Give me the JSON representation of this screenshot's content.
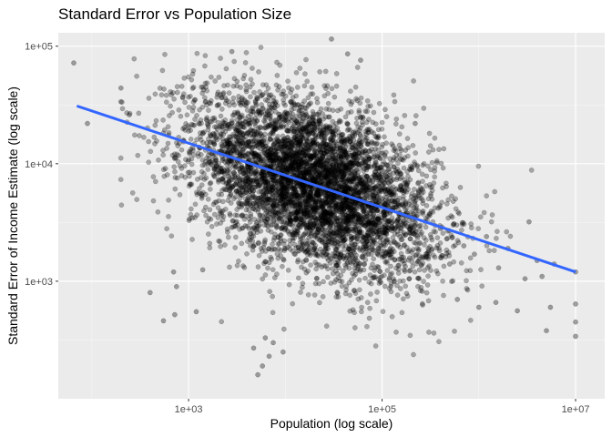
{
  "chart_data": {
    "type": "scatter",
    "title": "Standard Error vs Population Size",
    "xlabel": "Population (log scale)",
    "ylabel": "Standard Error of Income Estimate (log scale)",
    "x_scale": "log10",
    "y_scale": "log10",
    "xlim": [
      45,
      20000000
    ],
    "ylim": [
      100,
      130000
    ],
    "x_ticks": [
      {
        "value": 1000,
        "label": "1e+03"
      },
      {
        "value": 100000,
        "label": "1e+05"
      },
      {
        "value": 10000000,
        "label": "1e+07"
      }
    ],
    "y_ticks": [
      {
        "value": 1000,
        "label": "1e+03"
      },
      {
        "value": 10000,
        "label": "1e+04"
      },
      {
        "value": 100000,
        "label": "1e+05"
      }
    ],
    "grid": true,
    "legend": "none",
    "point_color": "#000000",
    "point_opacity": 0.3,
    "trend_line": {
      "method": "linear fit on log-log scale",
      "color": "#3366FF",
      "x": [
        70,
        10000000
      ],
      "y": [
        31000,
        1200
      ]
    },
    "points": [
      {
        "x": 65,
        "y": 72000
      },
      {
        "x": 90,
        "y": 22000
      },
      {
        "x": 200,
        "y": 44000
      },
      {
        "x": 400,
        "y": 800
      },
      {
        "x": 550,
        "y": 460
      },
      {
        "x": 700,
        "y": 1200
      },
      {
        "x": 750,
        "y": 900
      },
      {
        "x": 720,
        "y": 520
      },
      {
        "x": 1400,
        "y": 1250
      },
      {
        "x": 1200,
        "y": 550
      },
      {
        "x": 2800,
        "y": 90000
      },
      {
        "x": 4700,
        "y": 270
      },
      {
        "x": 5200,
        "y": 160
      },
      {
        "x": 5800,
        "y": 190
      },
      {
        "x": 6200,
        "y": 330
      },
      {
        "x": 6800,
        "y": 230
      },
      {
        "x": 7500,
        "y": 300
      },
      {
        "x": 9500,
        "y": 250
      },
      {
        "x": 30000,
        "y": 115000
      },
      {
        "x": 44000,
        "y": 86000
      },
      {
        "x": 60000,
        "y": 76000
      },
      {
        "x": 220000,
        "y": 22000
      },
      {
        "x": 600000,
        "y": 700
      },
      {
        "x": 1000000,
        "y": 600
      },
      {
        "x": 1500000,
        "y": 660
      },
      {
        "x": 2500000,
        "y": 560
      },
      {
        "x": 3000000,
        "y": 1050
      },
      {
        "x": 3300000,
        "y": 3200
      },
      {
        "x": 4000000,
        "y": 1500
      },
      {
        "x": 4500000,
        "y": 1100
      },
      {
        "x": 5000000,
        "y": 380
      },
      {
        "x": 5500000,
        "y": 600
      },
      {
        "x": 6000000,
        "y": 1400
      },
      {
        "x": 10000000,
        "y": 340
      },
      {
        "x": 10000000,
        "y": 450
      },
      {
        "x": 10000000,
        "y": 640
      },
      {
        "x": 10000000,
        "y": 1200
      },
      {
        "x": 1800,
        "y": 18000
      },
      {
        "x": 2500,
        "y": 9000
      },
      {
        "x": 3500,
        "y": 25000
      },
      {
        "x": 4500,
        "y": 6000
      },
      {
        "x": 6000,
        "y": 14000
      },
      {
        "x": 8000,
        "y": 8000
      },
      {
        "x": 10000,
        "y": 4500
      },
      {
        "x": 12000,
        "y": 11000
      },
      {
        "x": 15000,
        "y": 6500
      },
      {
        "x": 18000,
        "y": 3200
      },
      {
        "x": 20000,
        "y": 16000
      },
      {
        "x": 25000,
        "y": 5500
      },
      {
        "x": 30000,
        "y": 2500
      },
      {
        "x": 35000,
        "y": 9000
      },
      {
        "x": 40000,
        "y": 4000
      },
      {
        "x": 50000,
        "y": 1800
      },
      {
        "x": 60000,
        "y": 7000
      },
      {
        "x": 75000,
        "y": 3000
      },
      {
        "x": 90000,
        "y": 5000
      },
      {
        "x": 110000,
        "y": 2200
      },
      {
        "x": 130000,
        "y": 4200
      },
      {
        "x": 160000,
        "y": 1600
      },
      {
        "x": 200000,
        "y": 3000
      },
      {
        "x": 250000,
        "y": 2500
      },
      {
        "x": 300000,
        "y": 1900
      },
      {
        "x": 400000,
        "y": 2800
      },
      {
        "x": 500000,
        "y": 1400
      },
      {
        "x": 700000,
        "y": 2000
      },
      {
        "x": 900000,
        "y": 1700
      },
      {
        "x": 1200000,
        "y": 2400
      },
      {
        "x": 1600000,
        "y": 1300
      },
      {
        "x": 2000000,
        "y": 1900
      }
    ]
  }
}
